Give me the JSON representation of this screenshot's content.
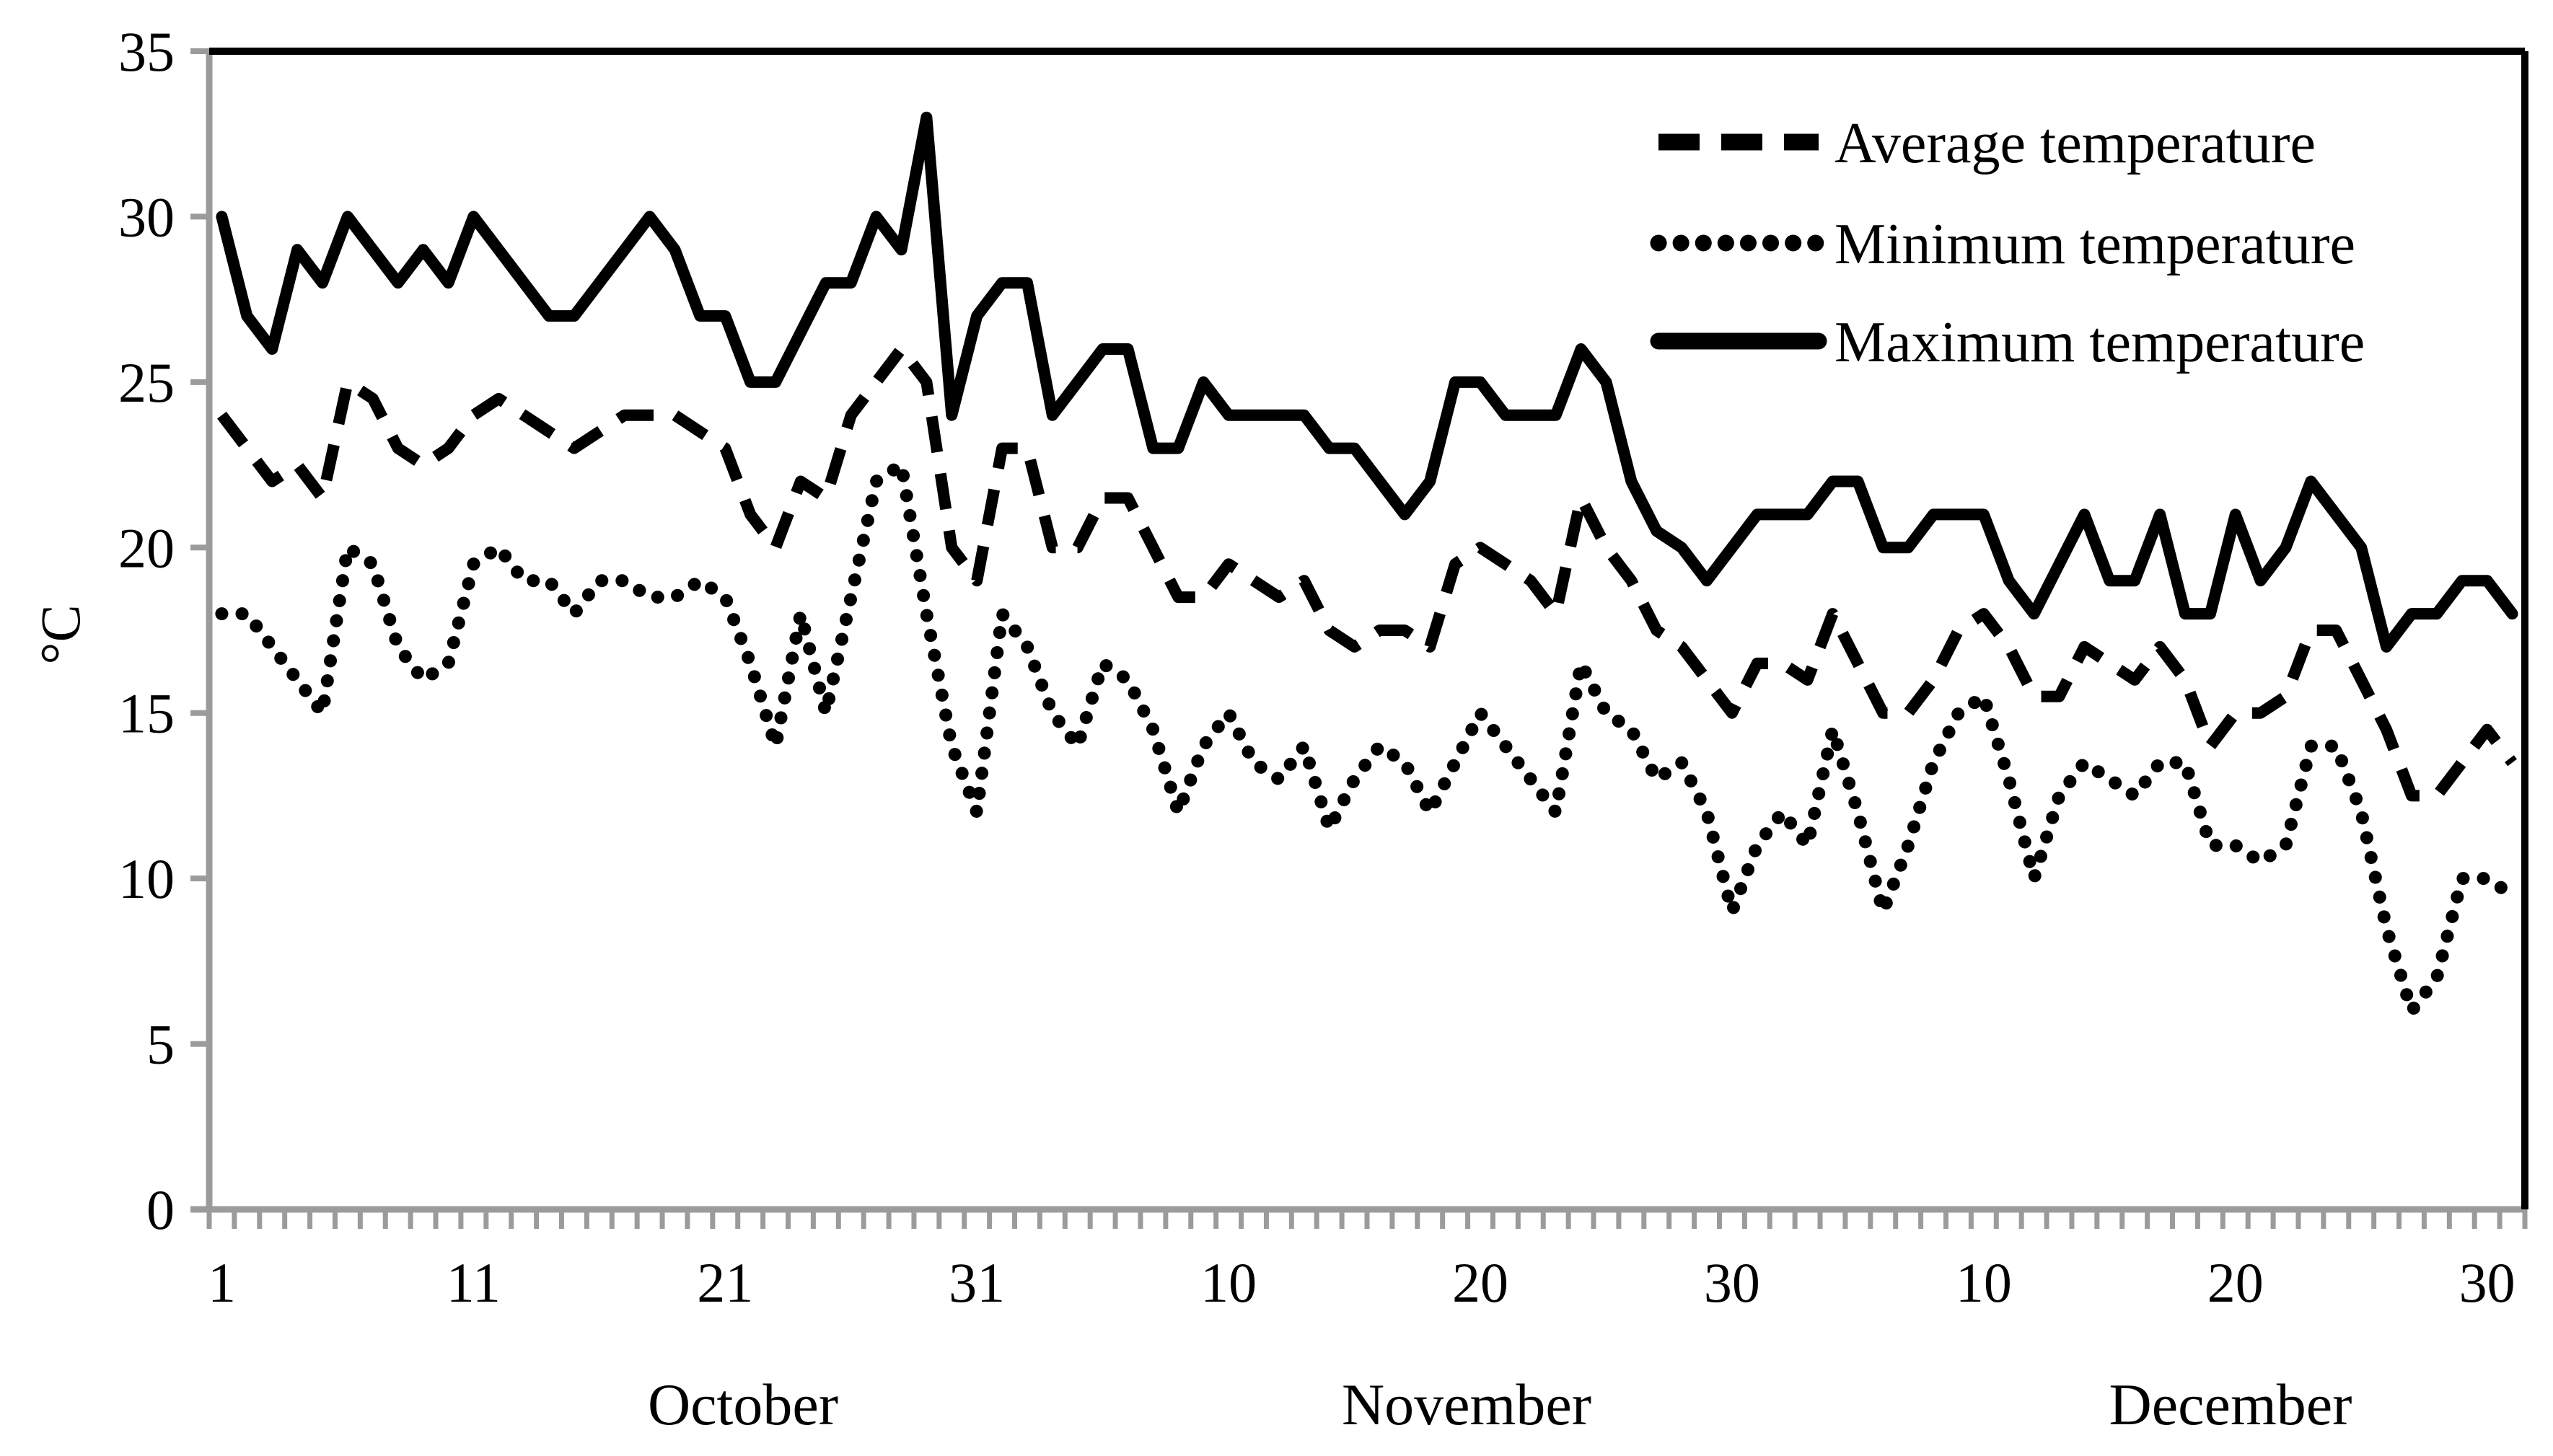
{
  "chart_data": {
    "type": "line",
    "title": "",
    "ylabel": "°C",
    "xlabel": "",
    "ylim": [
      0,
      35
    ],
    "yticks": [
      "0",
      "5",
      "10",
      "15",
      "20",
      "25",
      "30",
      "35"
    ],
    "ytick_values": [
      0,
      5,
      10,
      15,
      20,
      25,
      30,
      35
    ],
    "grid": false,
    "legend_position": "top-right",
    "months": [
      {
        "name": "October",
        "days": 31
      },
      {
        "name": "November",
        "days": 30
      },
      {
        "name": "December",
        "days": 31
      }
    ],
    "x_ticks": [
      {
        "day_index": 1,
        "label": "1"
      },
      {
        "day_index": 11,
        "label": "11"
      },
      {
        "day_index": 21,
        "label": "21"
      },
      {
        "day_index": 31,
        "label": "31"
      },
      {
        "day_index": 41,
        "label": "10"
      },
      {
        "day_index": 51,
        "label": "20"
      },
      {
        "day_index": 61,
        "label": "30"
      },
      {
        "day_index": 71,
        "label": "10"
      },
      {
        "day_index": 81,
        "label": "20"
      },
      {
        "day_index": 91,
        "label": "30"
      }
    ],
    "series": [
      {
        "name": "Average temperature",
        "style": "dashed",
        "values": [
          24,
          23,
          22,
          22.5,
          21.5,
          25,
          24.5,
          23,
          22.5,
          23,
          24,
          24.5,
          24,
          23.5,
          23,
          23.5,
          24,
          24,
          24,
          23.5,
          23,
          21,
          20,
          22,
          21.5,
          24,
          25,
          26,
          25,
          20,
          19,
          23,
          23,
          20,
          20,
          21.5,
          21.5,
          20,
          18.5,
          18.5,
          19.5,
          19,
          18.5,
          19,
          17.5,
          17,
          17.5,
          17.5,
          17,
          19.5,
          20,
          19.5,
          19,
          18,
          21.5,
          20,
          19,
          17.5,
          17,
          16,
          15,
          16.5,
          16.5,
          16,
          18,
          16.5,
          15,
          15,
          16,
          17.5,
          18,
          17,
          15.5,
          15.5,
          17,
          16.5,
          16,
          17,
          16,
          14,
          15,
          15,
          15.5,
          17.5,
          17.5,
          16,
          14.5,
          12.5,
          12.5,
          13.5,
          14.5,
          13.5
        ]
      },
      {
        "name": "Minimum temperature",
        "style": "dotted",
        "values": [
          18,
          18,
          17,
          16,
          15,
          20,
          19.5,
          17,
          16,
          16.5,
          19.5,
          20,
          19,
          19,
          18,
          19,
          19,
          18.5,
          18.5,
          19,
          18.5,
          16.5,
          14,
          18,
          15,
          18.5,
          22,
          22.5,
          18,
          14,
          12,
          18,
          17,
          15,
          14,
          16.5,
          16,
          14.5,
          12,
          14,
          15,
          13.5,
          13,
          14,
          11.5,
          13,
          14,
          13.5,
          12,
          13.5,
          15,
          14,
          13,
          12,
          16.5,
          15,
          14.5,
          13,
          13.5,
          12,
          9,
          11,
          12,
          11,
          14.5,
          12,
          9,
          11,
          13.5,
          15,
          15.5,
          13,
          10,
          12.5,
          13.5,
          13,
          12.5,
          13.5,
          13.5,
          11,
          11,
          10.5,
          11,
          14,
          14,
          12,
          8.5,
          6,
          7,
          10,
          10,
          9.5
        ]
      },
      {
        "name": "Maximum temperature",
        "style": "solid",
        "values": [
          30,
          27,
          26,
          29,
          28,
          30,
          29,
          28,
          29,
          28,
          30,
          29,
          28,
          27,
          27,
          28,
          29,
          30,
          29,
          27,
          27,
          25,
          25,
          26.5,
          28,
          28,
          30,
          29,
          33,
          24,
          27,
          28,
          28,
          24,
          25,
          26,
          26,
          23,
          23,
          25,
          24,
          24,
          24,
          24,
          23,
          23,
          22,
          21,
          22,
          25,
          25,
          24,
          24,
          24,
          26,
          25,
          22,
          20.5,
          20,
          19,
          20,
          21,
          21,
          21,
          22,
          22,
          20,
          20,
          21,
          21,
          21,
          19,
          18,
          19.5,
          21,
          19,
          19,
          21,
          18,
          18,
          21,
          19,
          20,
          22,
          21,
          20,
          17,
          18,
          18,
          19,
          19,
          18
        ]
      }
    ]
  },
  "colors": {
    "series_line": "#000000",
    "axis_line": "#9b9b9b",
    "plot_border": "#000000",
    "text": "#000000",
    "background": "#ffffff"
  }
}
